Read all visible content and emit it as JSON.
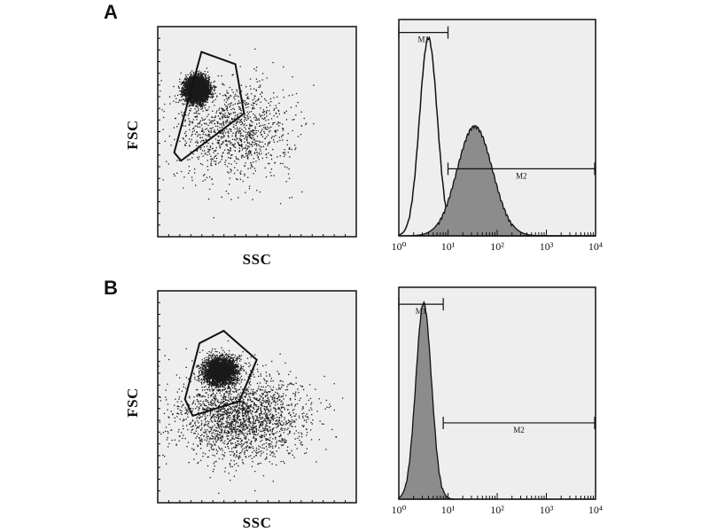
{
  "panels": [
    {
      "label": "A"
    },
    {
      "label": "B"
    }
  ],
  "colors": {
    "frame": "#111111",
    "plot_background": "#eeeeee",
    "dots": "#1a1a1a",
    "gate": "#111111",
    "histogram_fill": "#8c8c8c",
    "histogram_line": "#111111"
  },
  "chart_data": [
    {
      "type": "scatter",
      "panel": "A",
      "title": "",
      "xlabel": "SSC",
      "ylabel": "FSC",
      "xlim": [
        0,
        1023
      ],
      "ylim": [
        0,
        1023
      ],
      "grid": false,
      "density_clusters": [
        {
          "center": [
            200,
            720
          ],
          "spread": [
            60,
            60
          ],
          "weight": 0.78
        },
        {
          "center": [
            390,
            520
          ],
          "spread": [
            300,
            240
          ],
          "weight": 0.22
        }
      ],
      "gate_polygon": [
        [
          85,
          410
        ],
        [
          225,
          900
        ],
        [
          400,
          840
        ],
        [
          445,
          600
        ],
        [
          120,
          370
        ]
      ]
    },
    {
      "type": "area",
      "panel": "A",
      "title": "",
      "xlabel": "",
      "ylabel": "",
      "x_scale": "log",
      "xlim": [
        1,
        10000
      ],
      "x_tick_labels": [
        "10⁰",
        "10¹",
        "10²",
        "10³",
        "10⁴"
      ],
      "series": [
        {
          "fill": "none",
          "peak_x": 4,
          "peak_y": 0.92,
          "log_sigma": 0.18
        },
        {
          "fill": "gray",
          "peak_x": 35,
          "peak_y": 0.51,
          "log_sigma": 0.36
        }
      ],
      "markers": [
        {
          "label": "M1",
          "x_start": 1,
          "x_end": 10,
          "level": 0.94
        },
        {
          "label": "M2",
          "x_start": 10,
          "x_end": 10000,
          "level": 0.31
        }
      ]
    },
    {
      "type": "scatter",
      "panel": "B",
      "title": "",
      "xlabel": "SSC",
      "ylabel": "FSC",
      "xlim": [
        0,
        1023
      ],
      "ylim": [
        0,
        1023
      ],
      "grid": false,
      "density_clusters": [
        {
          "center": [
            320,
            640
          ],
          "spread": [
            85,
            65
          ],
          "weight": 0.58
        },
        {
          "center": [
            420,
            420
          ],
          "spread": [
            330,
            210
          ],
          "weight": 0.42
        }
      ],
      "gate_polygon": [
        [
          140,
          500
        ],
        [
          215,
          770
        ],
        [
          340,
          830
        ],
        [
          510,
          690
        ],
        [
          420,
          490
        ],
        [
          180,
          420
        ]
      ]
    },
    {
      "type": "area",
      "panel": "B",
      "title": "",
      "xlabel": "",
      "ylabel": "",
      "x_scale": "log",
      "xlim": [
        1,
        10000
      ],
      "x_tick_labels": [
        "10⁰",
        "10¹",
        "10²",
        "10³",
        "10⁴"
      ],
      "series": [
        {
          "fill": "gray",
          "peak_x": 3.2,
          "peak_y": 0.93,
          "log_sigma": 0.16
        }
      ],
      "markers": [
        {
          "label": "M1",
          "x_start": 1,
          "x_end": 8,
          "level": 0.92
        },
        {
          "label": "M2",
          "x_start": 8,
          "x_end": 10000,
          "level": 0.36
        }
      ]
    }
  ]
}
